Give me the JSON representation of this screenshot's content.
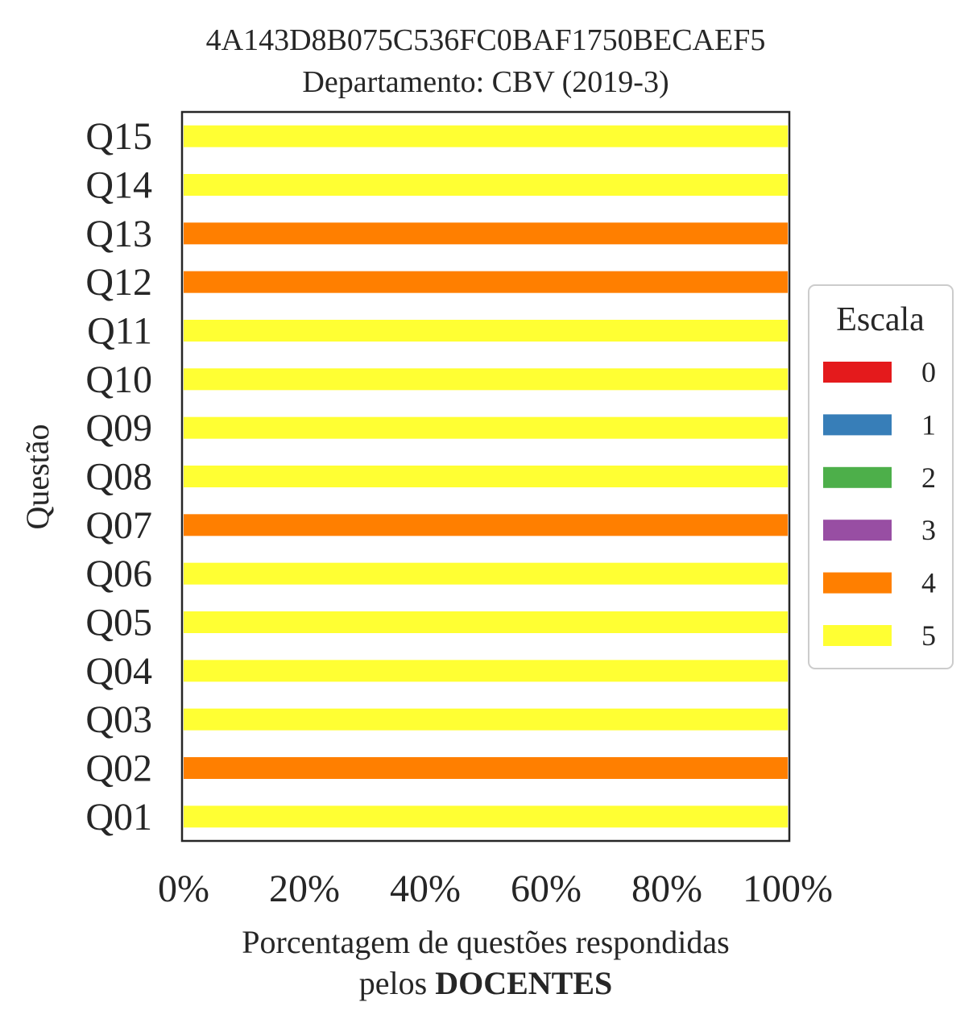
{
  "chart_data": {
    "type": "bar",
    "orientation": "horizontal",
    "stacked": true,
    "title": "4A143D8B075C536FC0BAF1750BECAEF5",
    "subtitle": "Departamento: CBV (2019-3)",
    "xlabel_line1": "Porcentagem de questões respondidas",
    "xlabel_line2_prefix": "pelos ",
    "xlabel_line2_bold": "DOCENTES",
    "ylabel": "Questão",
    "xlim": [
      0,
      100
    ],
    "xticks": [
      "0%",
      "20%",
      "40%",
      "60%",
      "80%",
      "100%"
    ],
    "categories": [
      "Q01",
      "Q02",
      "Q03",
      "Q04",
      "Q05",
      "Q06",
      "Q07",
      "Q08",
      "Q09",
      "Q10",
      "Q11",
      "Q12",
      "Q13",
      "Q14",
      "Q15"
    ],
    "series": [
      {
        "name": "0",
        "color": "#e41a1c",
        "values": [
          0,
          0,
          0,
          0,
          0,
          0,
          0,
          0,
          0,
          0,
          0,
          0,
          0,
          0,
          0
        ]
      },
      {
        "name": "1",
        "color": "#377eb8",
        "values": [
          0,
          0,
          0,
          0,
          0,
          0,
          0,
          0,
          0,
          0,
          0,
          0,
          0,
          0,
          0
        ]
      },
      {
        "name": "2",
        "color": "#4daf4a",
        "values": [
          0,
          0,
          0,
          0,
          0,
          0,
          0,
          0,
          0,
          0,
          0,
          0,
          0,
          0,
          0
        ]
      },
      {
        "name": "3",
        "color": "#984ea3",
        "values": [
          0,
          0,
          0,
          0,
          0,
          0,
          0,
          0,
          0,
          0,
          0,
          0,
          0,
          0,
          0
        ]
      },
      {
        "name": "4",
        "color": "#ff7f00",
        "values": [
          0,
          100,
          0,
          0,
          0,
          0,
          100,
          0,
          0,
          0,
          0,
          100,
          100,
          0,
          0
        ]
      },
      {
        "name": "5",
        "color": "#ffff33",
        "values": [
          100,
          0,
          100,
          100,
          100,
          100,
          0,
          100,
          100,
          100,
          100,
          0,
          0,
          100,
          100
        ]
      }
    ],
    "legend_title": "Escala",
    "legend_position": "center-right",
    "grid": false
  }
}
